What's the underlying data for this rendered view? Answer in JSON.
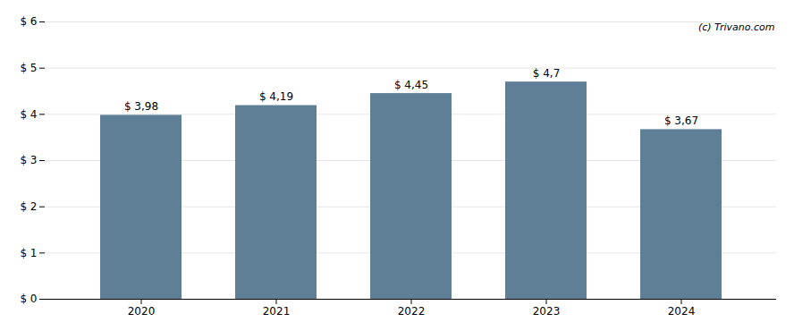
{
  "chart_data": {
    "type": "bar",
    "categories": [
      "2020",
      "2021",
      "2022",
      "2023",
      "2024"
    ],
    "values": [
      3.98,
      4.19,
      4.45,
      4.7,
      3.67
    ],
    "value_labels": [
      "$ 3,98",
      "$ 4,19",
      "$ 4,45",
      "$ 4,7",
      "$ 3,67"
    ],
    "data_labels": true,
    "color": "#5f7f96",
    "ylim": [
      0,
      6
    ],
    "yticks": [
      {
        "value": 0,
        "label": "$ 0"
      },
      {
        "value": 1,
        "label": "$ 1"
      },
      {
        "value": 2,
        "label": "$ 2"
      },
      {
        "value": 3,
        "label": "$ 3"
      },
      {
        "value": 4,
        "label": "$ 4"
      },
      {
        "value": 5,
        "label": "$ 5"
      },
      {
        "value": 6,
        "label": "$ 6"
      }
    ],
    "grid": true,
    "annotation": "(c) Trivano.com"
  }
}
